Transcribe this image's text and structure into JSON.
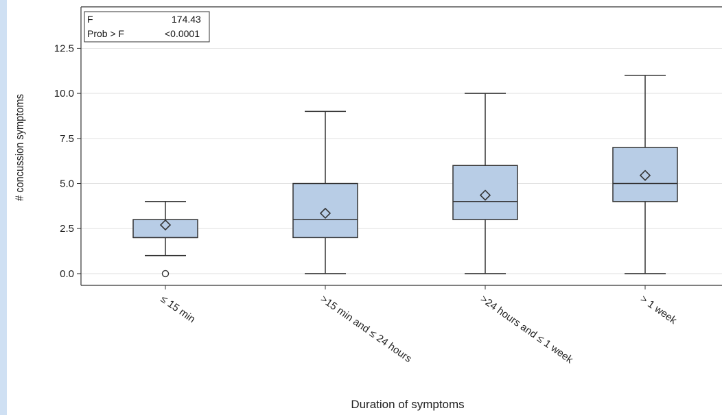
{
  "chart_data": {
    "type": "box",
    "xlabel": "Duration of symptoms",
    "ylabel": "# concussion symptoms",
    "ylim": [
      -0.65,
      14.8
    ],
    "yticks": [
      0.0,
      2.5,
      5.0,
      7.5,
      10.0,
      12.5
    ],
    "ytick_labels": [
      "0.0",
      "2.5",
      "5.0",
      "7.5",
      "10.0",
      "12.5"
    ],
    "grid": "horizontal",
    "categories": [
      "≤ 15 min",
      ">15 min and ≤ 24 hours",
      ">24 hours and ≤ 1 week",
      "> 1 week"
    ],
    "boxes": [
      {
        "whisker_low": 1,
        "q1": 2,
        "median": 2,
        "q3": 3,
        "whisker_high": 4,
        "mean": 2.7,
        "outliers": [
          0
        ]
      },
      {
        "whisker_low": 0,
        "q1": 2,
        "median": 3,
        "q3": 5,
        "whisker_high": 9,
        "mean": 3.35,
        "outliers": []
      },
      {
        "whisker_low": 0,
        "q1": 3,
        "median": 4,
        "q3": 6,
        "whisker_high": 10,
        "mean": 4.35,
        "outliers": []
      },
      {
        "whisker_low": 0,
        "q1": 4,
        "median": 5,
        "q3": 7,
        "whisker_high": 11,
        "mean": 5.45,
        "outliers": []
      }
    ],
    "box_color": "#b8cde6",
    "stats_box": {
      "placement": "top-left",
      "rows": [
        {
          "label": "F",
          "value": "174.43"
        },
        {
          "label": "Prob > F",
          "value": "<0.0001"
        }
      ]
    }
  }
}
